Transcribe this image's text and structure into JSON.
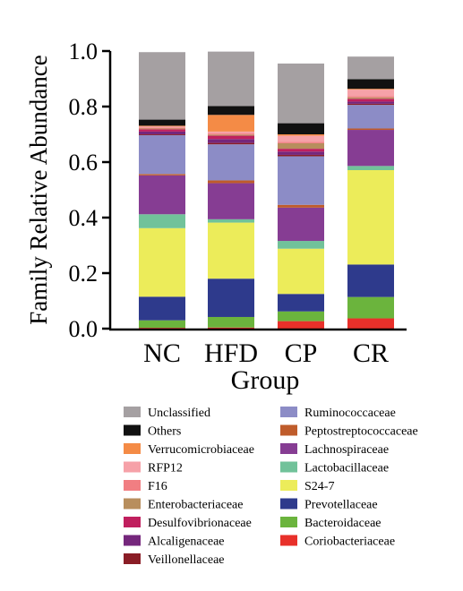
{
  "chart_data": {
    "type": "bar",
    "stacked": true,
    "xlabel": "Group",
    "ylabel": "Family Relative Abundance",
    "ylim": [
      0,
      1.0
    ],
    "yticks": [
      "0.0",
      "0.2",
      "0.4",
      "0.6",
      "0.8",
      "1.0"
    ],
    "categories": [
      "NC",
      "HFD",
      "CP",
      "CR"
    ],
    "legend_position": "bottom",
    "series": [
      {
        "name": "Coriobacteriaceae",
        "color": "#e8302a",
        "values": [
          0.003,
          0.004,
          0.027,
          0.037
        ]
      },
      {
        "name": "Bacteroidaceae",
        "color": "#6bb43d",
        "values": [
          0.027,
          0.038,
          0.035,
          0.077
        ]
      },
      {
        "name": "Prevotellaceae",
        "color": "#2e3a8c",
        "values": [
          0.085,
          0.138,
          0.063,
          0.117
        ]
      },
      {
        "name": "S24-7",
        "color": "#ecec5a",
        "values": [
          0.247,
          0.202,
          0.163,
          0.34
        ]
      },
      {
        "name": "Lactobacillaceae",
        "color": "#71c29a",
        "values": [
          0.05,
          0.012,
          0.028,
          0.015
        ]
      },
      {
        "name": "Lachnospiraceae",
        "color": "#863d93",
        "values": [
          0.14,
          0.13,
          0.12,
          0.13
        ]
      },
      {
        "name": "Peptostreptococcaceae",
        "color": "#bf5c2b",
        "values": [
          0.005,
          0.01,
          0.01,
          0.005
        ]
      },
      {
        "name": "Ruminococcaceae",
        "color": "#8c8cc6",
        "values": [
          0.14,
          0.13,
          0.175,
          0.085
        ]
      },
      {
        "name": "Veillonellaceae",
        "color": "#8a1d26",
        "values": [
          0.003,
          0.005,
          0.005,
          0.004
        ]
      },
      {
        "name": "Alcaligenaceae",
        "color": "#75277c",
        "values": [
          0.01,
          0.014,
          0.012,
          0.008
        ]
      },
      {
        "name": "Desulfovibrionaceae",
        "color": "#c01f5e",
        "values": [
          0.008,
          0.012,
          0.01,
          0.01
        ]
      },
      {
        "name": "Enterobacteriaceae",
        "color": "#b88e5d",
        "values": [
          0.003,
          0.004,
          0.02,
          0.005
        ]
      },
      {
        "name": "F16",
        "color": "#f17e82",
        "values": [
          0.003,
          0.004,
          0.005,
          0.004
        ]
      },
      {
        "name": "RFP12",
        "color": "#f6a1a8",
        "values": [
          0.004,
          0.007,
          0.022,
          0.024
        ]
      },
      {
        "name": "Verrucomicrobiaceae",
        "color": "#f48b46",
        "values": [
          0.003,
          0.06,
          0.005,
          0.003
        ]
      },
      {
        "name": "Others",
        "color": "#111111",
        "values": [
          0.022,
          0.032,
          0.04,
          0.035
        ]
      },
      {
        "name": "Unclassified",
        "color": "#a5a0a2",
        "values": [
          0.243,
          0.196,
          0.215,
          0.081
        ]
      }
    ],
    "legend_left": [
      "Unclassified",
      "Others",
      "Verrucomicrobiaceae",
      "RFP12",
      "F16",
      "Enterobacteriaceae",
      "Desulfovibrionaceae",
      "Alcaligenaceae",
      "Veillonellaceae"
    ],
    "legend_right": [
      "Ruminococcaceae",
      "Peptostreptococcaceae",
      "Lachnospiraceae",
      "Lactobacillaceae",
      "S24-7",
      "Prevotellaceae",
      "Bacteroidaceae",
      "Coriobacteriaceae"
    ]
  }
}
